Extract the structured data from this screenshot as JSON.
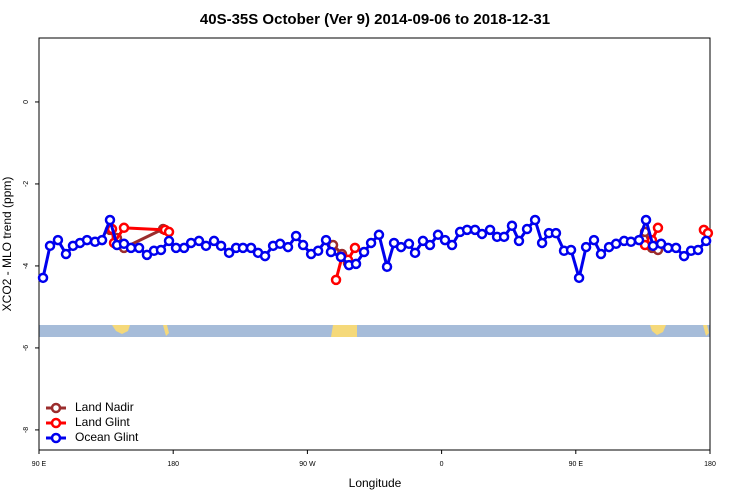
{
  "chart_data": {
    "type": "line",
    "title": "40S-35S October (Ver 9)   2014-09-06 to 2018-12-31",
    "x_label": "Longitude",
    "y_label": "XCO2 - MLO trend (ppm)",
    "xlim": [
      90,
      540
    ],
    "ylim": [
      -8.49,
      1.56
    ],
    "xticks": [
      {
        "value": 90,
        "label": "90 E"
      },
      180,
      {
        "value": 270,
        "label": "90 W"
      },
      {
        "value": 360,
        "label": "0"
      },
      {
        "value": 450,
        "label": "90 E"
      },
      {
        "value": 540,
        "label": "180"
      }
    ],
    "yticks": [
      0,
      -2,
      -4,
      -6,
      -8
    ],
    "legend": "bottom-left",
    "series": [
      {
        "name": "Land Nadir",
        "color": "#9b2d2d",
        "x": [
          137.6,
          142.3,
          147.0,
          173.2,
          250,
          287.2,
          293.2,
          297.2,
          400,
          496.4,
          501.1,
          505.1
        ],
        "values": [
          -3.12,
          -3.32,
          -3.56,
          -3.1,
          null,
          -3.49,
          -3.71,
          -3.93,
          null,
          -3.17,
          -3.56,
          -3.61
        ]
      },
      {
        "name": "Land Glint",
        "color": "#ff0000",
        "x": [
          139.0,
          140.3,
          147.0,
          174.5,
          177.2,
          250,
          289.2,
          293.2,
          297.2,
          301.9,
          400,
          496.4,
          501.1,
          505.1,
          520,
          535.9,
          538.6
        ],
        "values": [
          -3.1,
          -3.44,
          -3.07,
          -3.12,
          -3.17,
          null,
          -4.34,
          -3.78,
          -3.85,
          -3.56,
          null,
          -3.49,
          -3.37,
          -3.07,
          null,
          -3.12,
          -3.2
        ]
      },
      {
        "name": "Ocean Glint",
        "color": "#0000ee",
        "x": [
          92.7,
          97.4,
          102.7,
          108.1,
          112.8,
          117.5,
          122.2,
          127.6,
          132.3,
          137.6,
          142.3,
          147.0,
          151.7,
          157.1,
          162.4,
          167.1,
          171.8,
          177.2,
          181.9,
          187.3,
          192.0,
          197.3,
          202.0,
          207.4,
          212.1,
          217.5,
          222.2,
          226.8,
          232.2,
          236.9,
          241.6,
          247.0,
          251.7,
          257.0,
          262.4,
          267.1,
          272.5,
          277.2,
          282.5,
          285.8,
          292.5,
          297.9,
          302.6,
          308.0,
          312.7,
          318.0,
          323.4,
          328.1,
          332.8,
          338.1,
          342.2,
          347.5,
          352.2,
          357.6,
          362.3,
          367.0,
          372.4,
          377.1,
          382.4,
          387.1,
          392.5,
          397.2,
          401.9,
          407.2,
          411.9,
          417.3,
          422.7,
          427.4,
          432.0,
          436.7,
          442.1,
          446.8,
          452.2,
          456.9,
          462.2,
          466.9,
          472.3,
          477.0,
          482.4,
          487.0,
          492.4,
          497.1,
          501.8,
          507.2,
          511.9,
          517.2,
          522.6,
          527.3,
          532.0,
          537.4
        ],
        "values": [
          -4.29,
          -3.51,
          -3.37,
          -3.71,
          -3.51,
          -3.44,
          -3.37,
          -3.41,
          -3.37,
          -2.88,
          -3.49,
          -3.46,
          -3.56,
          -3.56,
          -3.73,
          -3.63,
          -3.61,
          -3.39,
          -3.56,
          -3.56,
          -3.44,
          -3.39,
          -3.51,
          -3.39,
          -3.51,
          -3.68,
          -3.56,
          -3.56,
          -3.56,
          -3.68,
          -3.76,
          -3.51,
          -3.46,
          -3.54,
          -3.27,
          -3.49,
          -3.71,
          -3.63,
          -3.37,
          -3.66,
          -3.78,
          -3.98,
          -3.95,
          -3.66,
          -3.44,
          -3.24,
          -4.02,
          -3.44,
          -3.54,
          -3.46,
          -3.68,
          -3.39,
          -3.49,
          -3.24,
          -3.37,
          -3.49,
          -3.17,
          -3.12,
          -3.12,
          -3.22,
          -3.12,
          -3.29,
          -3.29,
          -3.02,
          -3.39,
          -3.1,
          -2.88,
          -3.44,
          -3.2,
          -3.2,
          -3.63,
          -3.61,
          -4.29,
          -3.54,
          -3.37,
          -3.71,
          -3.54,
          -3.46,
          -3.39,
          -3.41,
          -3.37,
          -2.88,
          -3.51,
          -3.46,
          -3.56,
          -3.56,
          -3.76,
          -3.63,
          -3.61,
          -3.39
        ]
      }
    ]
  }
}
